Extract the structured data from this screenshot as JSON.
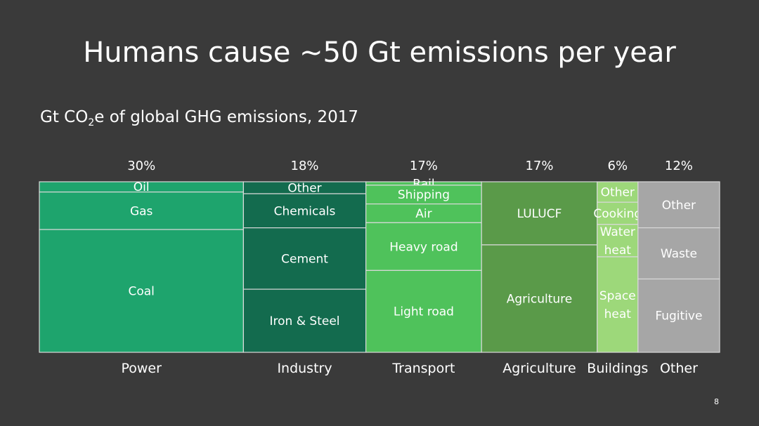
{
  "title": "Humans cause ~50 Gt emissions per year",
  "subtitle": {
    "prefix": "Gt CO",
    "subscript": "2",
    "suffix": "e of global GHG emissions, 2017"
  },
  "slide_number": "8",
  "chart_data": {
    "type": "marimekko",
    "title": "Gt CO2e of global GHG emissions, 2017",
    "columns": [
      {
        "name": "Power",
        "share_label": "30%",
        "share": 30,
        "color": "#1ea46d",
        "segments": [
          {
            "label": "Oil",
            "share": 6
          },
          {
            "label": "Gas",
            "share": 22
          },
          {
            "label": "Coal",
            "share": 72
          }
        ]
      },
      {
        "name": "Industry",
        "share_label": "18%",
        "share": 18,
        "color": "#136b4e",
        "segments": [
          {
            "label": "Other",
            "share": 7
          },
          {
            "label": "Chemicals",
            "share": 20
          },
          {
            "label": "Cement",
            "share": 36
          },
          {
            "label": "Iron & Steel",
            "share": 37
          }
        ]
      },
      {
        "name": "Transport",
        "share_label": "17%",
        "share": 17,
        "color": "#4fc25b",
        "segments": [
          {
            "label": "Rail",
            "share": 2
          },
          {
            "label": "Shipping",
            "share": 11
          },
          {
            "label": "Air",
            "share": 11
          },
          {
            "label": "Heavy road",
            "share": 28
          },
          {
            "label": "Light road",
            "share": 48
          }
        ]
      },
      {
        "name": "Agriculture",
        "share_label": "17%",
        "share": 17,
        "color": "#5a9a49",
        "segments": [
          {
            "label": "LULUCF",
            "share": 37
          },
          {
            "label": "Agriculture",
            "share": 63
          }
        ]
      },
      {
        "name": "Buildings",
        "share_label": "6%",
        "share": 6,
        "color": "#9dd87a",
        "segments": [
          {
            "label": "Other",
            "share": 12
          },
          {
            "label": "Cooking",
            "share": 13
          },
          {
            "label": "Water heat",
            "share": 19
          },
          {
            "label": "Space heat",
            "share": 56
          }
        ]
      },
      {
        "name": "Other",
        "share_label": "12%",
        "share": 12,
        "color": "#a6a6a6",
        "segments": [
          {
            "label": "Other",
            "share": 27
          },
          {
            "label": "Waste",
            "share": 30
          },
          {
            "label": "Fugitive",
            "share": 43
          }
        ]
      }
    ]
  }
}
